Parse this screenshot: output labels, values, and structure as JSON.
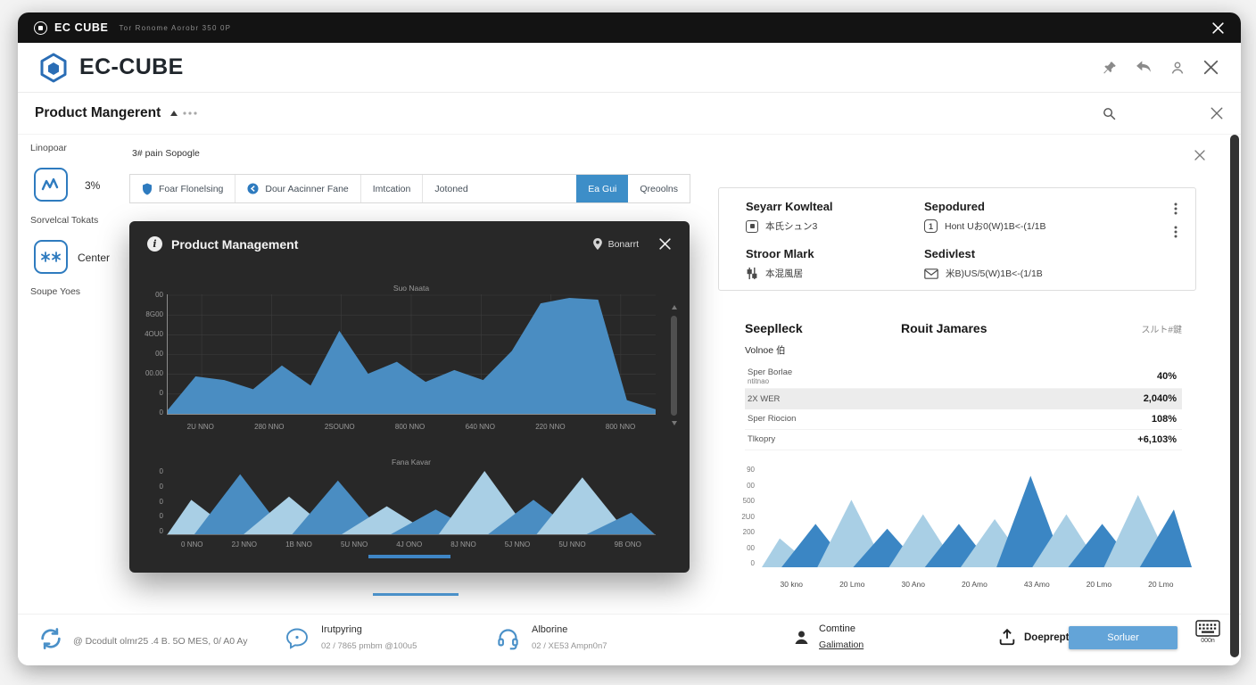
{
  "titlebar": {
    "app_name": "EC CUBE",
    "meta": "Tor Ronome   Aorobr   350 0P"
  },
  "header": {
    "brand": "EC-CUBE"
  },
  "page_bar": {
    "title": "Product Mangerent"
  },
  "sidebar": {
    "section_label": "Linopoar",
    "stat_value": "3%",
    "stat_caption": "Sorvelcal Tokats",
    "center_label": "Center",
    "center_caption": "Soupe Yoes"
  },
  "toolbar": {
    "filter_label": "3# pain Sopogle"
  },
  "tabs": [
    {
      "label": "Foar Flonelsing"
    },
    {
      "label": "Dour Aacinner Fane"
    },
    {
      "label": "Imtcation"
    },
    {
      "label": "Jotoned"
    },
    {
      "label": "Ea Gui",
      "active": true
    },
    {
      "label": "Qreoolns"
    }
  ],
  "modal": {
    "title": "Product Management",
    "badge_label": "Bonarrt"
  },
  "right_panel": {
    "card": {
      "items": [
        {
          "title": "Seyarr Kowlteal",
          "value": "本氏シュン3"
        },
        {
          "title": "Sepodured",
          "value": "Hont Uお0(W)1B<-(1/1B"
        },
        {
          "title": "Stroor Mlark",
          "value": "本混風居"
        },
        {
          "title": "Sedivlest",
          "value": "米B)US/5(W)1B<-(1/1B"
        }
      ]
    },
    "stats": {
      "col1_title": "Seeplleck",
      "col2_title": "Rouit Jamares",
      "link_label": "スルト#鍵",
      "subtitle": "Volnoe 伯",
      "rows": [
        {
          "label": "Sper Borlae",
          "label2": "ntitnao",
          "value": "40%",
          "cls": ""
        },
        {
          "label": "2X WER",
          "label2": "",
          "value": "2,040%",
          "cls": "highlight"
        },
        {
          "label": "Sper Riocion",
          "label2": "",
          "value": "108%",
          "cls": ""
        },
        {
          "label": "Tlkopry",
          "label2": "",
          "value": "+6,103%",
          "cls": ""
        }
      ]
    }
  },
  "footer": {
    "copyright": "@ Dcodult olmr25 .4 B. 5O MES, 0/ A0 Ay",
    "support1_title": "Irutpyring",
    "support1_sub": "02 / 7865 pmbm @100u5",
    "support2_title": "Alborine",
    "support2_sub": "02 / XE53 Ampn0n7",
    "user_line1": "Comtine",
    "user_line2": "Galimation",
    "upload_label": "Doeprept",
    "submit_label": "Sorluer",
    "keyboard_label": "000n"
  },
  "chart_data": [
    {
      "id": "modal-sales-area",
      "type": "area",
      "title": "Suo Naata",
      "yticks": [
        "00",
        "8G00",
        "4OU0",
        "00",
        "00.00",
        "0",
        "0"
      ],
      "xticks": [
        "2U NNO",
        "280 NNO",
        "2SOUNO",
        "800 NNO",
        "640 NNO",
        "220 NNO",
        "800 NNO"
      ],
      "values": [
        200,
        2100,
        1900,
        1400,
        2700,
        1600,
        4600,
        2250,
        2900,
        1800,
        2450,
        1900,
        3500,
        6100,
        6400,
        6300,
        800,
        300
      ],
      "ylim": [
        0,
        6400
      ],
      "color": "#4a8dc2",
      "hgrid": true,
      "vgrid": true,
      "grid_color": "#3d3d3d",
      "axis": "#8c8c8c",
      "legend": "none"
    },
    {
      "id": "modal-volume-peaks",
      "type": "peaks",
      "title": "Fana Kavar",
      "yticks": [
        "0",
        "0",
        "0",
        "0",
        "0"
      ],
      "xticks": [
        "0 NNO",
        "2J NNO",
        "1B NNO",
        "5U NNO",
        "4J ONO",
        "8J NNO",
        "5J NNO",
        "5U NNO",
        "9B ONO"
      ],
      "values": [
        55,
        95,
        60,
        85,
        45,
        40,
        100,
        55,
        90,
        35
      ],
      "ylim": [
        0,
        100
      ],
      "colors": [
        "#a9cfe5",
        "#4a8dc2"
      ],
      "baseline": "#6a6a6a"
    },
    {
      "id": "regional-peaks",
      "type": "peaks",
      "title": "",
      "yticks": [
        "90",
        "00",
        "500",
        "2U0",
        "200",
        "00",
        "0"
      ],
      "xticks": [
        "30 kno",
        "20 Lmo",
        "30 Ano",
        "20 Amo",
        "43 Amo",
        "20 Lmo",
        "20 Lmo"
      ],
      "values": [
        30,
        45,
        70,
        40,
        55,
        45,
        50,
        95,
        55,
        45,
        75,
        60
      ],
      "ylim": [
        0,
        100
      ],
      "colors": [
        "#a9cfe5",
        "#3b86c4"
      ]
    }
  ]
}
